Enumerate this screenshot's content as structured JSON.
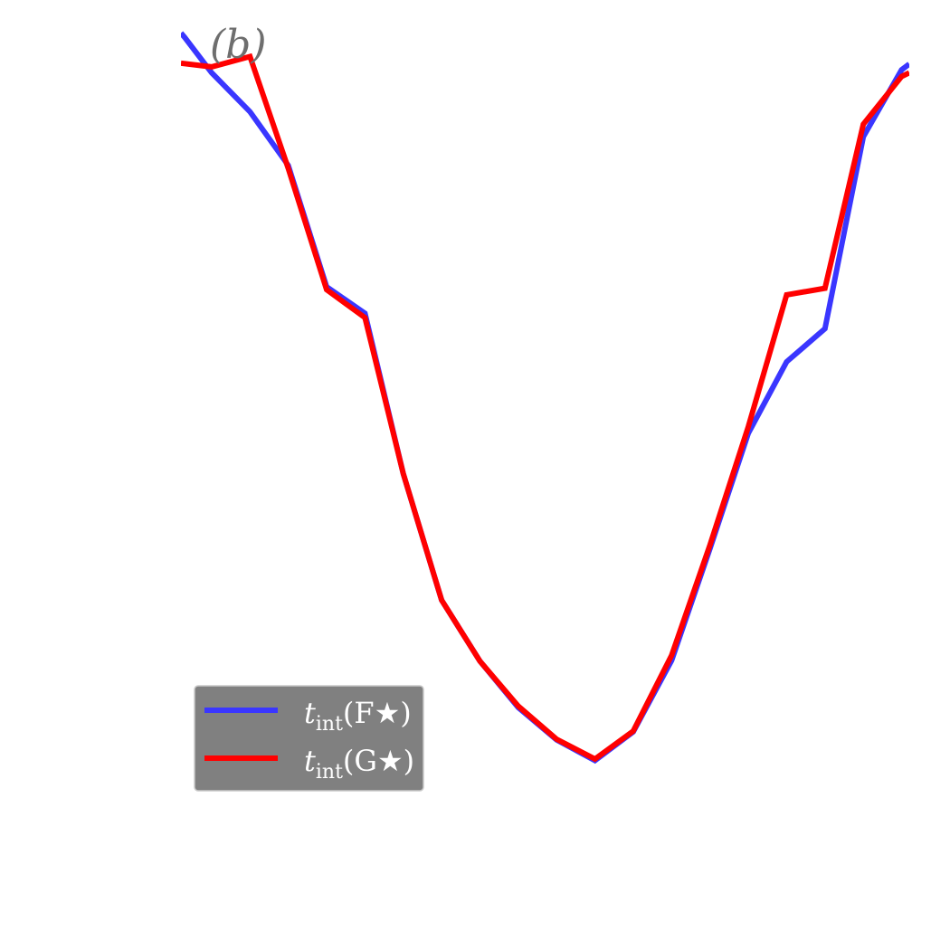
{
  "panel_label": "(b)",
  "chart_data": {
    "type": "line",
    "title": "",
    "xlabel": "",
    "ylabel": "",
    "grid": false,
    "legend": {
      "placement": "lower-left"
    },
    "xlim": [
      0,
      19
    ],
    "ylim": [
      0,
      1
    ],
    "series": [
      {
        "name": "t_int(F★)",
        "legend_label": {
          "main": "t",
          "sub": "int",
          "arg": "(F★)"
        },
        "color": "#3a36ff",
        "x": [
          0,
          0.1,
          0.8,
          1.8,
          2.8,
          3.8,
          4.8,
          5.8,
          6.8,
          7.8,
          8.8,
          9.8,
          10.8,
          11.8,
          12.8,
          13.8,
          14.8,
          15.8,
          16.8,
          17.8,
          18.8,
          19
        ],
        "y": [
          0.992,
          0.986,
          0.938,
          0.885,
          0.812,
          0.647,
          0.611,
          0.393,
          0.221,
          0.138,
          0.075,
          0.031,
          0.003,
          0.042,
          0.139,
          0.291,
          0.448,
          0.545,
          0.59,
          0.851,
          0.942,
          0.95
        ]
      },
      {
        "name": "t_int(G★)",
        "legend_label": {
          "main": "t",
          "sub": "int",
          "arg": "(G★)"
        },
        "color": "#ff0000",
        "x": [
          0,
          0.8,
          1.8,
          2.8,
          3.8,
          4.8,
          5.8,
          6.8,
          7.8,
          8.8,
          9.8,
          10.8,
          11.8,
          12.8,
          13.8,
          14.8,
          15.8,
          16.8,
          17.8,
          18.8,
          19
        ],
        "y": [
          0.951,
          0.946,
          0.96,
          0.808,
          0.643,
          0.605,
          0.393,
          0.221,
          0.138,
          0.077,
          0.032,
          0.005,
          0.043,
          0.146,
          0.296,
          0.457,
          0.636,
          0.645,
          0.868,
          0.933,
          0.938
        ]
      }
    ]
  }
}
